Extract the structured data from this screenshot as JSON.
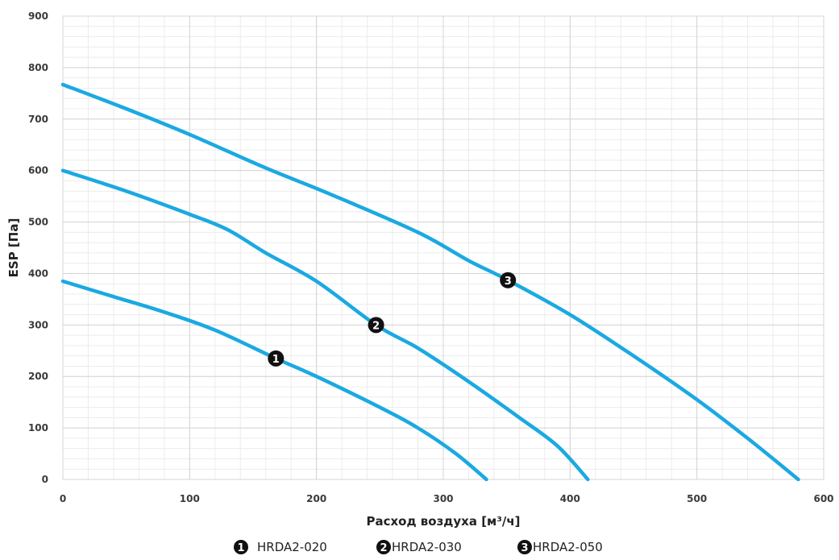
{
  "chart_data": {
    "type": "line",
    "xlabel": "Расход воздуха [м³/ч]",
    "ylabel": "ESP [Па]",
    "xlim": [
      0,
      600
    ],
    "ylim": [
      0,
      900
    ],
    "x_ticks": [
      0,
      100,
      200,
      300,
      400,
      500,
      600
    ],
    "y_ticks": [
      0,
      100,
      200,
      300,
      400,
      500,
      600,
      700,
      800,
      900
    ],
    "x_minor_step": 20,
    "y_minor_step": 20,
    "grid": true,
    "legend_position": "bottom",
    "line_color": "#1ba9e1",
    "series": [
      {
        "name": "HRDA2-020",
        "marker": "1",
        "marker_at": [
          168,
          235
        ],
        "points": [
          [
            0,
            385
          ],
          [
            40,
            355
          ],
          [
            80,
            325
          ],
          [
            120,
            290
          ],
          [
            168,
            235
          ],
          [
            200,
            200
          ],
          [
            250,
            140
          ],
          [
            280,
            100
          ],
          [
            310,
            50
          ],
          [
            334,
            0
          ]
        ]
      },
      {
        "name": "HRDA2-030",
        "marker": "2",
        "marker_at": [
          247,
          300
        ],
        "points": [
          [
            0,
            600
          ],
          [
            50,
            560
          ],
          [
            100,
            515
          ],
          [
            130,
            485
          ],
          [
            160,
            440
          ],
          [
            200,
            385
          ],
          [
            247,
            300
          ],
          [
            280,
            255
          ],
          [
            320,
            190
          ],
          [
            360,
            120
          ],
          [
            390,
            65
          ],
          [
            414,
            0
          ]
        ]
      },
      {
        "name": "HRDA2-050",
        "marker": "3",
        "marker_at": [
          351,
          387
        ],
        "points": [
          [
            0,
            767
          ],
          [
            50,
            720
          ],
          [
            100,
            670
          ],
          [
            160,
            605
          ],
          [
            210,
            555
          ],
          [
            280,
            480
          ],
          [
            320,
            425
          ],
          [
            351,
            387
          ],
          [
            400,
            320
          ],
          [
            450,
            240
          ],
          [
            500,
            155
          ],
          [
            540,
            80
          ],
          [
            580,
            0
          ]
        ]
      }
    ]
  }
}
